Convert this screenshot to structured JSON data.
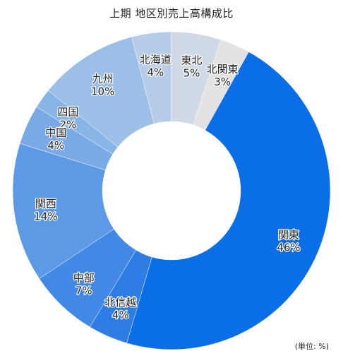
{
  "chart_data": {
    "type": "pie",
    "title": "上期 地区別売上高構成比",
    "unit_note": "(単位: %)",
    "donut": true,
    "start": "top",
    "direction": "counter-clockwise",
    "slices": [
      {
        "name": "北海道",
        "value": 4,
        "label": "4%",
        "color": "#b7cde7"
      },
      {
        "name": "九州",
        "value": 10,
        "label": "10%",
        "color": "#9bbfe7"
      },
      {
        "name": "四国",
        "value": 2,
        "label": "2%",
        "color": "#88b4e6"
      },
      {
        "name": "中国",
        "value": 4,
        "label": "4%",
        "color": "#7aaae6"
      },
      {
        "name": "関西",
        "value": 14,
        "label": "14%",
        "color": "#5c9ae6"
      },
      {
        "name": "中部",
        "value": 7,
        "label": "7%",
        "color": "#4289e6"
      },
      {
        "name": "北信越",
        "value": 4,
        "label": "4%",
        "color": "#2e7de6"
      },
      {
        "name": "関東",
        "value": 46,
        "label": "46%",
        "color": "#0a6ee6"
      },
      {
        "name": "北関東",
        "value": 3,
        "label": "3%",
        "color": "#e2e2e2"
      },
      {
        "name": "東北",
        "value": 5,
        "label": "5%",
        "color": "#d0d9e6"
      }
    ]
  }
}
